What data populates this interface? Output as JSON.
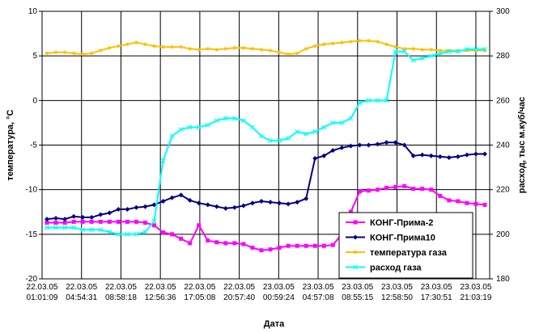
{
  "chart_data": {
    "type": "line",
    "xlabel": "Дата",
    "ylabel_left": "температура, °С",
    "ylabel_right": "расход, тыс м.куб/час",
    "ylim_left": [
      -20,
      10
    ],
    "ylim_right": [
      180,
      300
    ],
    "yticks_left": [
      -20,
      -15,
      -10,
      -5,
      0,
      5,
      10
    ],
    "yticks_right": [
      180,
      200,
      220,
      240,
      260,
      280,
      300
    ],
    "x_tick_labels": [
      [
        "22.03.05",
        "01:01:09"
      ],
      [
        "22.03.05",
        "04:54:31"
      ],
      [
        "22.03.05",
        "08:58:18"
      ],
      [
        "22.03.05",
        "12:56:36"
      ],
      [
        "22.03.05",
        "17:05:08"
      ],
      [
        "22.03.05",
        "20:57:40"
      ],
      [
        "23.03.05",
        "00:59:24"
      ],
      [
        "23.03.05",
        "04:57:08"
      ],
      [
        "23.03.05",
        "08:55:15"
      ],
      [
        "23.03.05",
        "12:58:50"
      ],
      [
        "23.03.05",
        "17:30:51"
      ],
      [
        "23.03.05",
        "21:03:19"
      ]
    ],
    "grid": true,
    "legend_position": "bottom-right",
    "series": [
      {
        "name": "КОНГ-Прима-2",
        "axis": "left",
        "color": "#ff00ff",
        "marker": "square",
        "values": [
          -13.7,
          -13.7,
          -13.7,
          -13.6,
          -13.6,
          -13.6,
          -13.6,
          -13.6,
          -13.6,
          -13.6,
          -13.6,
          -13.7,
          -14.0,
          -14.8,
          -15.0,
          -15.5,
          -16.0,
          -14.0,
          -15.7,
          -15.9,
          -16.0,
          -16.0,
          -16.1,
          -16.5,
          -16.8,
          -16.7,
          -16.5,
          -16.3,
          -16.3,
          -16.3,
          -16.3,
          -16.3,
          -16.2,
          -15.0,
          -12.5,
          -10.2,
          -10.1,
          -10.0,
          -9.8,
          -9.7,
          -9.6,
          -9.9,
          -9.9,
          -10.0,
          -10.7,
          -11.2,
          -11.3,
          -11.5,
          -11.6,
          -11.7
        ]
      },
      {
        "name": "КОНГ-Прима10",
        "axis": "left",
        "color": "#000080",
        "marker": "diamond",
        "values": [
          -13.3,
          -13.2,
          -13.3,
          -13.0,
          -13.1,
          -13.1,
          -12.8,
          -12.6,
          -12.2,
          -12.2,
          -12.0,
          -11.9,
          -11.7,
          -11.3,
          -10.9,
          -10.6,
          -11.2,
          -11.5,
          -11.7,
          -11.9,
          -12.1,
          -12.0,
          -11.8,
          -11.5,
          -11.3,
          -11.4,
          -11.5,
          -11.6,
          -11.4,
          -11.0,
          -6.5,
          -6.2,
          -5.6,
          -5.3,
          -5.1,
          -5.0,
          -5.0,
          -4.9,
          -4.7,
          -4.7,
          -5.0,
          -6.2,
          -6.1,
          -6.2,
          -6.3,
          -6.4,
          -6.3,
          -6.1,
          -6.0,
          -6.0
        ]
      },
      {
        "name": "температура газа",
        "axis": "left",
        "color": "#ffc000",
        "marker": "circle",
        "values": [
          5.3,
          5.4,
          5.4,
          5.3,
          5.2,
          5.3,
          5.6,
          5.9,
          6.1,
          6.3,
          6.5,
          6.3,
          6.1,
          6.0,
          6.0,
          6.0,
          5.8,
          5.7,
          5.8,
          5.7,
          5.8,
          5.9,
          5.9,
          5.8,
          5.7,
          5.6,
          5.4,
          5.2,
          5.3,
          5.8,
          6.1,
          6.3,
          6.4,
          6.5,
          6.6,
          6.7,
          6.7,
          6.6,
          6.3,
          6.0,
          5.8,
          5.8,
          5.7,
          5.7,
          5.6,
          5.6,
          5.6,
          5.6,
          5.6,
          5.6
        ]
      },
      {
        "name": "расход газа",
        "axis": "right",
        "color": "#00ffff",
        "marker": "x",
        "values": [
          203,
          203,
          203,
          203,
          202,
          202,
          202,
          201,
          200,
          200,
          200,
          201,
          206,
          233,
          244,
          247,
          248,
          248,
          249,
          251,
          252,
          252,
          251,
          248,
          244,
          242,
          242,
          243,
          246,
          245,
          246,
          248,
          250,
          250,
          252,
          259,
          260,
          260,
          260,
          282,
          282,
          278,
          279,
          280,
          281,
          282,
          282,
          283,
          283,
          283
        ]
      }
    ]
  }
}
